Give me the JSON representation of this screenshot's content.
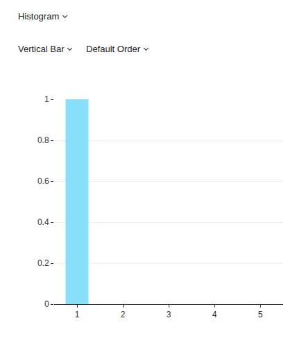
{
  "controls": [
    "Histogram",
    "Vertical Bar",
    "Default Order"
  ],
  "chart_data": {
    "type": "bar",
    "categories": [
      "1",
      "2",
      "3",
      "4",
      "5"
    ],
    "values": [
      1,
      0,
      0,
      0,
      0
    ],
    "color": "#87dff9",
    "ylim": [
      0,
      1
    ],
    "yticks": [
      0,
      0.2,
      0.4,
      0.6,
      0.8,
      1
    ],
    "grid": true
  }
}
